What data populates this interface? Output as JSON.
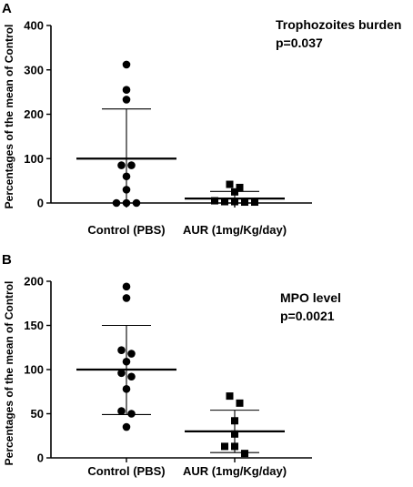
{
  "chart_data": [
    {
      "panel": "A",
      "type": "scatter",
      "ylabel": "Percentages of the mean of Control",
      "ylim": [
        0,
        400
      ],
      "yticks": [
        0,
        100,
        200,
        300,
        400
      ],
      "categories": [
        "Control (PBS)",
        "AUR (1mg/Kg/day)"
      ],
      "annotation": {
        "line1": "Trophozoites burden",
        "line2": "p=0.037"
      },
      "series": [
        {
          "category": "Control (PBS)",
          "marker": "circle",
          "values": [
            312,
            255,
            233,
            85,
            85,
            60,
            30,
            0,
            0,
            0
          ],
          "mean": 100,
          "sd_upper": 212,
          "sd_lower": 0
        },
        {
          "category": "AUR (1mg/Kg/day)",
          "marker": "square",
          "values": [
            42,
            35,
            25,
            5,
            3,
            3,
            2,
            2
          ],
          "mean": 10,
          "sd_upper": 26,
          "sd_lower": 0
        }
      ]
    },
    {
      "panel": "B",
      "type": "scatter",
      "ylabel": "Percentages of the mean of Control",
      "ylim": [
        0,
        200
      ],
      "yticks": [
        0,
        50,
        100,
        150,
        200
      ],
      "categories": [
        "Control (PBS)",
        "AUR (1mg/Kg/day)"
      ],
      "annotation": {
        "line1": "MPO level",
        "line2": "p=0.0021"
      },
      "series": [
        {
          "category": "Control (PBS)",
          "marker": "circle",
          "values": [
            194,
            181,
            122,
            118,
            109,
            96,
            92,
            78,
            53,
            50,
            35
          ],
          "mean": 100,
          "sd_upper": 150,
          "sd_lower": 49
        },
        {
          "category": "AUR (1mg/Kg/day)",
          "marker": "square",
          "values": [
            70,
            62,
            42,
            27,
            13,
            13,
            5
          ],
          "mean": 30,
          "sd_upper": 54,
          "sd_lower": 6
        }
      ]
    }
  ]
}
